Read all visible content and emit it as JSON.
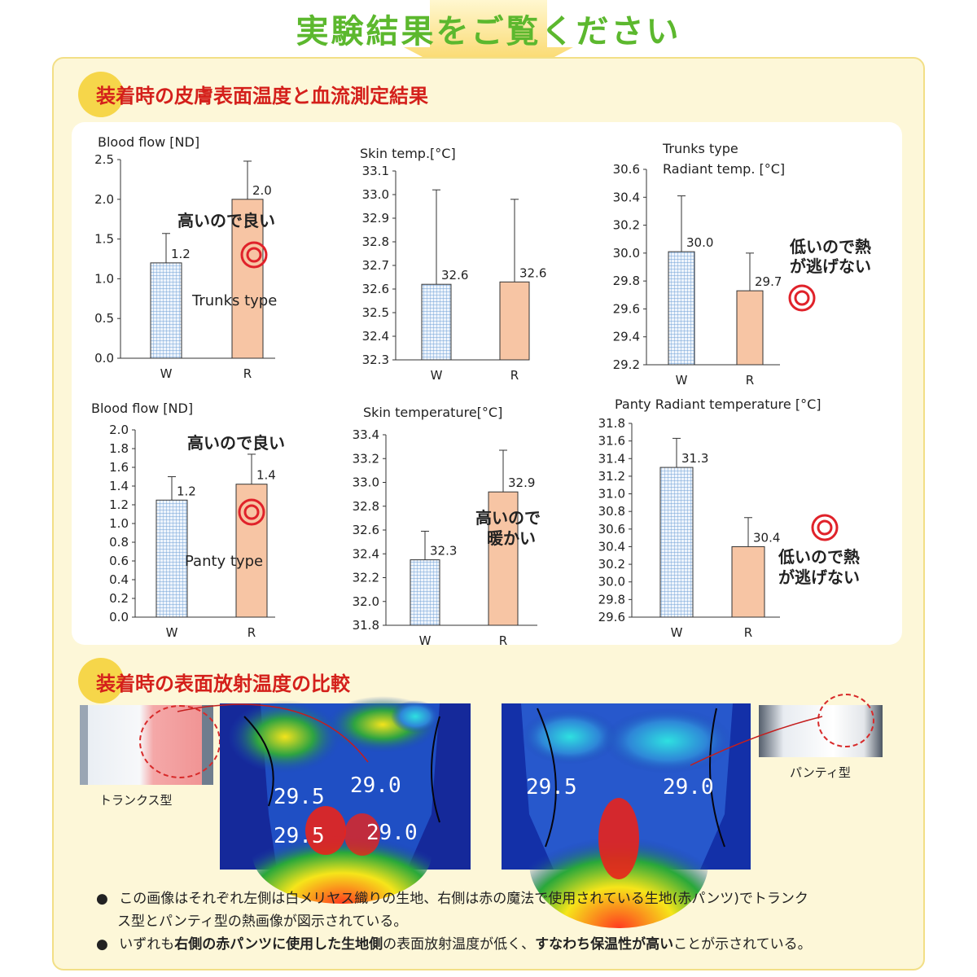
{
  "page": {
    "banner_title": "実験結果をご覧ください",
    "section1_title": "装着時の皮膚表面温度と血流測定結果",
    "section2_title": "装着時の表面放射温度の比較",
    "colors": {
      "banner_green": "#5cb82e",
      "section_red": "#d4201b",
      "panel_bg": "#fdf7d8",
      "bar_w": "#cfe0f5",
      "bar_r": "#f7c5a4",
      "target_red": "#e0222a"
    }
  },
  "chart_data": [
    {
      "type": "bar",
      "id": "c1",
      "ylabel": "Blood flow [ND]",
      "categories": [
        "W",
        "R"
      ],
      "values": [
        1.2,
        2.0
      ],
      "value_labels": [
        "1.2",
        "2.0"
      ],
      "errors": [
        0.37,
        0.48
      ],
      "ylim": [
        0.0,
        2.5
      ],
      "yticks": [
        "0.0",
        "0.5",
        "1.0",
        "1.5",
        "2.0",
        "2.5"
      ],
      "annotations": [
        "高いので良い",
        "Trunks type"
      ]
    },
    {
      "type": "bar",
      "id": "c2",
      "ylabel": "Skin temp.[°C]",
      "categories": [
        "W",
        "R"
      ],
      "values": [
        32.62,
        32.63
      ],
      "value_labels": [
        "32.6",
        "32.6"
      ],
      "errors": [
        0.4,
        0.35
      ],
      "ylim": [
        32.3,
        33.1
      ],
      "yticks": [
        "32.3",
        "32.4",
        "32.5",
        "32.6",
        "32.7",
        "32.8",
        "32.9",
        "33.0",
        "33.1"
      ],
      "annotations": []
    },
    {
      "type": "bar",
      "id": "c3",
      "title_line1": "Trunks type",
      "ylabel": "Radiant temp. [°C]",
      "categories": [
        "W",
        "R"
      ],
      "values": [
        30.01,
        29.73
      ],
      "value_labels": [
        "30.0",
        "29.7"
      ],
      "errors": [
        0.4,
        0.27
      ],
      "ylim": [
        29.2,
        30.6
      ],
      "yticks": [
        "29.2",
        "29.4",
        "29.6",
        "29.8",
        "30.0",
        "30.2",
        "30.4",
        "30.6"
      ],
      "annotations": [
        "低いので熱",
        "が逃げない"
      ]
    },
    {
      "type": "bar",
      "id": "c4",
      "ylabel": "Blood flow [ND]",
      "categories": [
        "W",
        "R"
      ],
      "values": [
        1.25,
        1.42
      ],
      "value_labels": [
        "1.2",
        "1.4"
      ],
      "errors": [
        0.25,
        0.32
      ],
      "ylim": [
        0.0,
        2.0
      ],
      "yticks": [
        "0.0",
        "0.2",
        "0.4",
        "0.6",
        "0.8",
        "1.0",
        "1.2",
        "1.4",
        "1.6",
        "1.8",
        "2.0"
      ],
      "annotations": [
        "高いので良い",
        "Panty type"
      ]
    },
    {
      "type": "bar",
      "id": "c5",
      "ylabel": "Skin temperature[°C]",
      "categories": [
        "W",
        "R"
      ],
      "values": [
        32.35,
        32.92
      ],
      "value_labels": [
        "32.3",
        "32.9"
      ],
      "errors": [
        0.24,
        0.35
      ],
      "ylim": [
        31.8,
        33.4
      ],
      "yticks": [
        "31.8",
        "32.0",
        "32.2",
        "32.4",
        "32.6",
        "32.8",
        "33.0",
        "33.2",
        "33.4"
      ],
      "annotations": [
        "高いので",
        "暖かい"
      ]
    },
    {
      "type": "bar",
      "id": "c6",
      "ylabel": "Panty Radiant temperature [°C]",
      "categories": [
        "W",
        "R"
      ],
      "values": [
        31.3,
        30.4
      ],
      "value_labels": [
        "31.3",
        "30.4"
      ],
      "errors": [
        0.33,
        0.33
      ],
      "ylim": [
        29.6,
        31.8
      ],
      "yticks": [
        "29.6",
        "29.8",
        "30.0",
        "30.2",
        "30.4",
        "30.6",
        "30.8",
        "31.0",
        "31.2",
        "31.4",
        "31.6",
        "31.8"
      ],
      "annotations": [
        "低いので熱",
        "が逃げない"
      ]
    }
  ],
  "thermal": {
    "left_caption": "トランクス型",
    "right_caption": "パンティ型",
    "left_labels": [
      "29.5",
      "29.0",
      "29.5",
      "29.0"
    ],
    "right_labels": [
      "29.5",
      "29.0"
    ]
  },
  "notes": {
    "b1_line1": "この画像はそれぞれ左側は白メリヤス織りの生地、右側は赤の魔法で使用されている生地(赤パンツ)でトランク",
    "b1_line2": "ス型とパンティ型の熱画像が図示されている。",
    "b2_pre": "いずれも",
    "b2_bold1": "右側の赤パンツに使用した生地側",
    "b2_mid": "の表面放射温度が低く、",
    "b2_bold2": "すなわち保温性が高い",
    "b2_post": "ことが示されている。"
  }
}
